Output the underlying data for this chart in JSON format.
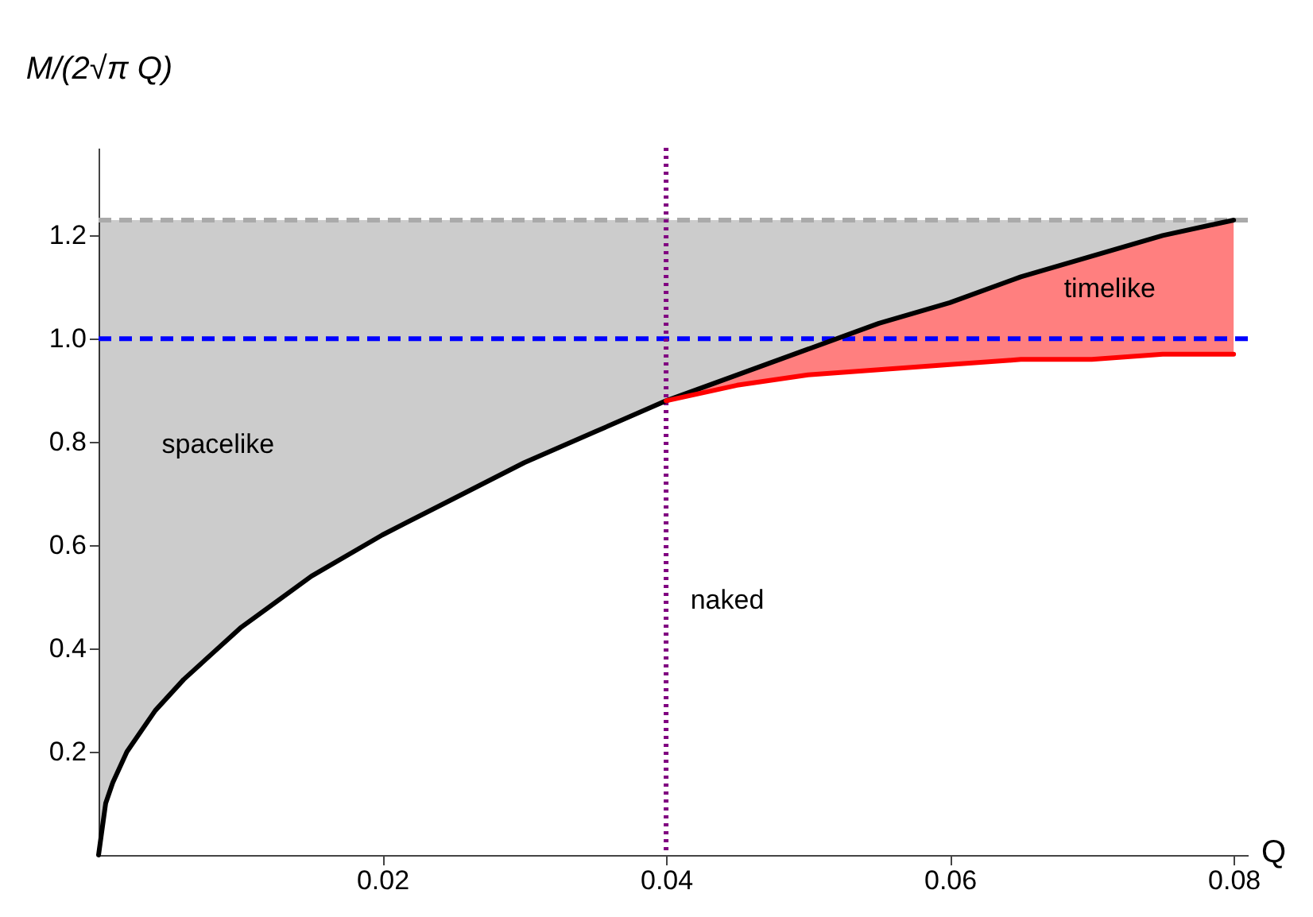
{
  "chart_data": {
    "type": "line",
    "xlabel": "Q",
    "ylabel": "M/(2√π Q)",
    "xlim": [
      0,
      0.081
    ],
    "ylim": [
      0,
      1.37
    ],
    "xticks": [
      0.02,
      0.04,
      0.06,
      0.08
    ],
    "yticks": [
      0.2,
      0.4,
      0.6,
      0.8,
      {
        "value": 1,
        "label": "1.0"
      },
      1.2
    ],
    "grid": false,
    "marker": "none",
    "line_style": "solid",
    "series": [
      {
        "color": "#000000",
        "x": [
          0,
          0.0005,
          0.001,
          0.002,
          0.004,
          0.006,
          0.008,
          0.01,
          0.015,
          0.02,
          0.025,
          0.03,
          0.035,
          0.04,
          0.045,
          0.05,
          0.055,
          0.06,
          0.065,
          0.07,
          0.075,
          0.08
        ],
        "values": [
          0,
          0.1,
          0.14,
          0.2,
          0.28,
          0.34,
          0.39,
          0.44,
          0.54,
          0.62,
          0.69,
          0.76,
          0.82,
          0.88,
          0.93,
          0.98,
          1.03,
          1.07,
          1.12,
          1.16,
          1.2,
          1.23
        ],
        "lower": [
          0,
          0.1,
          0.14,
          0.2,
          0.28,
          0.34,
          0.39,
          0.44,
          0.54,
          0.62,
          0.69,
          0.76,
          0.82,
          0.88,
          0.93,
          0.98,
          1.03,
          1.07,
          1.12,
          1.16,
          1.2,
          1.23
        ],
        "upper": [
          1.23,
          1.23,
          1.23,
          1.23,
          1.23,
          1.23,
          1.23,
          1.23,
          1.23,
          1.23,
          1.23,
          1.23,
          1.23,
          1.23,
          1.23,
          1.23,
          1.23,
          1.23,
          1.23,
          1.23,
          1.23,
          1.23
        ]
      },
      {
        "color": "#ff0000",
        "x": [
          0.04,
          0.045,
          0.05,
          0.055,
          0.06,
          0.065,
          0.07,
          0.075,
          0.08
        ],
        "values": [
          0.88,
          0.91,
          0.93,
          0.94,
          0.95,
          0.96,
          0.96,
          0.97,
          0.97
        ],
        "lower": [
          0.88,
          0.91,
          0.93,
          0.94,
          0.95,
          0.96,
          0.96,
          0.97,
          0.97
        ],
        "upper": [
          0.88,
          0.93,
          0.98,
          1.03,
          1.07,
          1.12,
          1.16,
          1.2,
          1.23
        ]
      }
    ],
    "ref_lines": [
      {
        "axis": "y",
        "value": 1.23,
        "color": "#aaaaaa",
        "line_style": "dashed"
      },
      {
        "axis": "y",
        "value": 1,
        "color": "#0000ff",
        "line_style": "dashed"
      },
      {
        "axis": "x",
        "value": 0.04,
        "color": "#800080",
        "line_style": "dotted"
      }
    ],
    "annotations": [
      "spacelike",
      "timelike",
      "naked"
    ]
  }
}
